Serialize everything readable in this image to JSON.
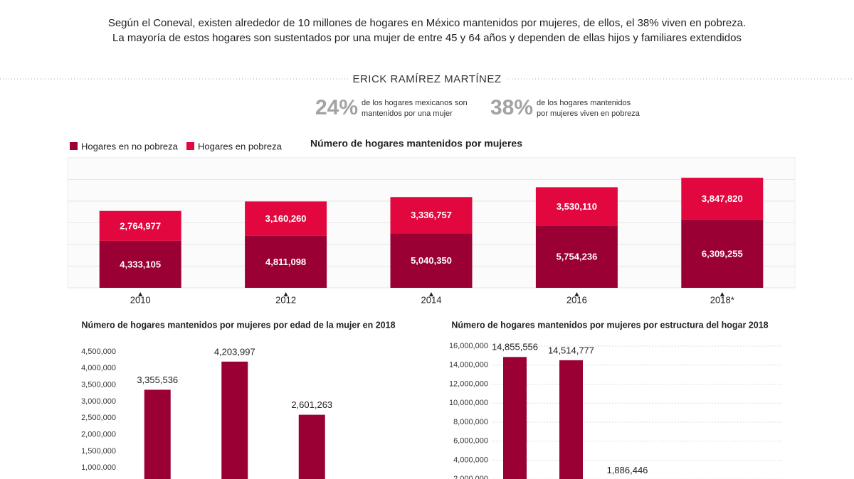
{
  "header": {
    "subtitle": [
      "Según el Coneval, existen alrededor de 10 millones de hogares en México mantenidos por mujeres, de ellos, el 38% viven en pobreza.",
      "La mayoría de estos hogares son sustentados por una mujer de entre 45 y 64 años y dependen de ellas hijos y familiares extendidos"
    ],
    "author": "ERICK RAMÍREZ MARTÍNEZ",
    "stats": [
      {
        "figure": "24%",
        "text": [
          "de los hogares mexicanos son",
          "mantenidos por una mujer"
        ]
      },
      {
        "figure": "38%",
        "text": [
          "de los hogares mantenidos",
          "por mujeres viven en pobreza"
        ]
      }
    ]
  },
  "chart_data": [
    {
      "type": "bar",
      "stacked": true,
      "title": "Número de hogares mantenidos por mujeres",
      "categories": [
        "2010",
        "2012",
        "2014",
        "2016",
        "2018*"
      ],
      "series": [
        {
          "name": "Hogares en no pobreza",
          "color": "#9b0034",
          "values": [
            4333105,
            4811098,
            5040350,
            5754236,
            6309255
          ],
          "value_labels": [
            "4,333,105",
            "4,811,098",
            "5,040,350",
            "5,754,236",
            "6,309,255"
          ]
        },
        {
          "name": "Hogares en pobreza",
          "color": "#e2073f",
          "values": [
            2764977,
            3160260,
            3336757,
            3530110,
            3847820
          ],
          "value_labels": [
            "2,764,977",
            "3,160,260",
            "3,336,757",
            "3,530,110",
            "3,847,820"
          ]
        }
      ],
      "ylim": [
        0,
        12000000
      ],
      "yticks": [
        0,
        2000000,
        4000000,
        6000000,
        8000000,
        10000000,
        12000000
      ],
      "grid": true,
      "legend": "top-left"
    },
    {
      "type": "bar",
      "title": "Número de hogares mantenidos por mujeres por edad de la mujer en 2018",
      "categories": [
        null,
        null,
        null
      ],
      "values": [
        3355536,
        4203997,
        2601263
      ],
      "value_labels": [
        "3,355,536",
        "4,203,997",
        "2,601,263"
      ],
      "color": "#9b0034",
      "ylim": [
        0,
        4500000
      ],
      "yticks": [
        {
          "value": 1000000,
          "label": "1,000,000"
        },
        {
          "value": 1500000,
          "label": "1,500,000"
        },
        {
          "value": 2000000,
          "label": "2,000,000"
        },
        {
          "value": 2500000,
          "label": "2,500,000"
        },
        {
          "value": 3000000,
          "label": "3,000,000"
        },
        {
          "value": 3500000,
          "label": "3,500,000"
        },
        {
          "value": 4000000,
          "label": "4,000,000"
        },
        {
          "value": 4500000,
          "label": "4,500,000"
        }
      ],
      "grid": false
    },
    {
      "type": "bar",
      "title": "Número de hogares mantenidos por mujeres por estructura del hogar 2018",
      "categories": [
        null,
        null,
        null
      ],
      "values": [
        14855556,
        14514777,
        1886446
      ],
      "value_labels": [
        "14,855,556",
        "14,514,777",
        "1,886,446"
      ],
      "color": "#9b0034",
      "ylim": [
        0,
        16000000
      ],
      "yticks": [
        {
          "value": 2000000,
          "label": "2,000,000"
        },
        {
          "value": 4000000,
          "label": "4,000,000"
        },
        {
          "value": 6000000,
          "label": "6,000,000"
        },
        {
          "value": 8000000,
          "label": "8,000,000"
        },
        {
          "value": 10000000,
          "label": "10,000,000"
        },
        {
          "value": 12000000,
          "label": "12,000,000"
        },
        {
          "value": 14000000,
          "label": "14,000,000"
        },
        {
          "value": 16000000,
          "label": "16,000,000"
        }
      ],
      "grid": true
    }
  ]
}
